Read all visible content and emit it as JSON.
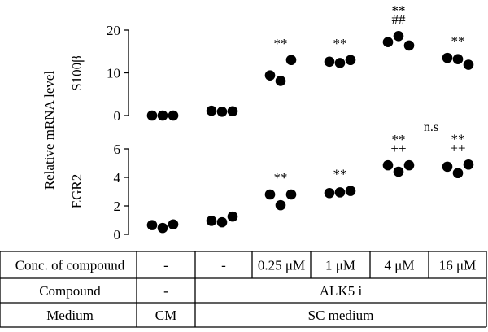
{
  "ylabel": "Relative mRNA level",
  "chart_data": [
    {
      "type": "scatter",
      "panel_label": "S100β",
      "ylim": [
        0,
        20
      ],
      "yticks": [
        0,
        10,
        20
      ],
      "groups": [
        "CM",
        "SC medium",
        "0.25 μM",
        "1 μM",
        "4 μM",
        "16 μM"
      ],
      "points": [
        [
          0,
          0,
          0
        ],
        [
          1.1,
          0.9,
          1.0
        ],
        [
          9.4,
          8.1,
          13.0
        ],
        [
          12.6,
          12.3,
          13.0
        ],
        [
          17.2,
          18.6,
          16.4
        ],
        [
          13.5,
          13.2,
          11.9
        ]
      ],
      "annotations": [
        {
          "group": 2,
          "lines": [
            "**"
          ]
        },
        {
          "group": 3,
          "lines": [
            "**"
          ]
        },
        {
          "group": 4,
          "lines": [
            "**",
            "##"
          ]
        },
        {
          "group": 5,
          "lines": [
            "**"
          ]
        }
      ]
    },
    {
      "type": "scatter",
      "panel_label": "EGR2",
      "ylim": [
        0,
        6
      ],
      "yticks": [
        0,
        2,
        4,
        6
      ],
      "groups": [
        "CM",
        "SC medium",
        "0.25 μM",
        "1 μM",
        "4 μM",
        "16 μM"
      ],
      "points": [
        [
          0.65,
          0.45,
          0.7
        ],
        [
          0.95,
          0.85,
          1.25
        ],
        [
          2.8,
          2.05,
          2.8
        ],
        [
          2.9,
          2.95,
          3.05
        ],
        [
          4.85,
          4.4,
          4.85
        ],
        [
          4.75,
          4.3,
          4.9
        ]
      ],
      "annotations": [
        {
          "group": 2,
          "lines": [
            "**"
          ]
        },
        {
          "group": 3,
          "lines": [
            "**"
          ]
        },
        {
          "group": 4,
          "lines": [
            "**",
            "++"
          ]
        },
        {
          "group": 5,
          "lines": [
            "**",
            "++"
          ]
        }
      ]
    }
  ],
  "ns_label": "n.s",
  "table": {
    "rows": [
      {
        "header": "Conc. of compound",
        "cells": [
          "-",
          "-",
          "0.25 μM",
          "1 μM",
          "4 μM",
          "16 μM"
        ]
      },
      {
        "header": "Compound",
        "cells": [
          "-",
          "ALK5 i"
        ]
      },
      {
        "header": "Medium",
        "cells": [
          "CM",
          "SC medium"
        ]
      }
    ]
  }
}
